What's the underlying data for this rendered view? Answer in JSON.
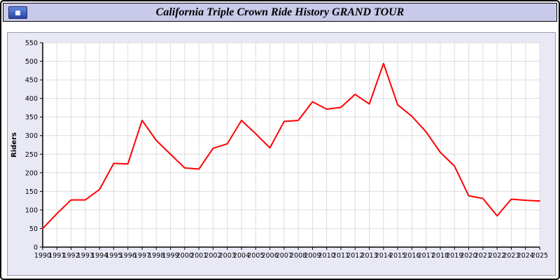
{
  "header": {
    "title": "California Triple Crown Ride History GRAND TOUR"
  },
  "chart_data": {
    "type": "line",
    "title": "California Triple Crown Ride History GRAND TOUR",
    "xlabel": "",
    "ylabel": "Riders",
    "ylim": [
      0,
      550
    ],
    "ytick_step": 50,
    "grid": true,
    "legend_position": "none",
    "line_color": "#ff0000",
    "x": [
      1990,
      1991,
      1992,
      1993,
      1994,
      1995,
      1996,
      1997,
      1998,
      1999,
      2000,
      2001,
      2002,
      2003,
      2004,
      2005,
      2006,
      2007,
      2008,
      2009,
      2010,
      2011,
      2012,
      2013,
      2014,
      2015,
      2016,
      2017,
      2018,
      2019,
      2020,
      2021,
      2022,
      2023,
      2024,
      2025
    ],
    "series": [
      {
        "name": "Riders",
        "values": [
          50,
          90,
          127,
          127,
          155,
          225,
          224,
          341,
          287,
          250,
          213,
          210,
          266,
          278,
          341,
          305,
          267,
          338,
          341,
          391,
          371,
          376,
          411,
          385,
          494,
          383,
          352,
          310,
          255,
          218,
          138,
          131,
          84,
          129,
          126,
          124
        ]
      }
    ]
  }
}
